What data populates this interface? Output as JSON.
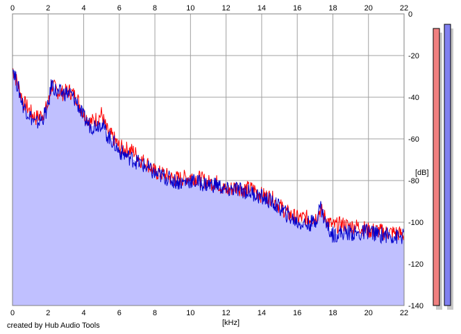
{
  "chart_data": {
    "type": "area",
    "xlabel": "[kHz]",
    "ylabel": "[dB]",
    "xlim": [
      0,
      22
    ],
    "ylim": [
      -140,
      0
    ],
    "x_ticks": [
      "0",
      "2",
      "4",
      "6",
      "8",
      "10",
      "12",
      "14",
      "16",
      "18",
      "20",
      "22"
    ],
    "y_ticks": [
      "0",
      "-20",
      "-40",
      "-60",
      "-80",
      "-100",
      "-120",
      "-140"
    ],
    "grid": true,
    "series": [
      {
        "color": "#ff0000",
        "x": [
          0,
          0.3,
          0.6,
          1,
          1.3,
          1.7,
          2,
          2.2,
          2.5,
          2.8,
          3.2,
          3.6,
          4,
          4.4,
          4.8,
          5,
          5.3,
          5.7,
          6,
          6.4,
          6.8,
          7.2,
          7.6,
          8,
          8.5,
          9,
          9.5,
          10,
          10.5,
          11,
          11.5,
          12,
          12.5,
          13,
          13.5,
          14,
          14.5,
          15,
          15.5,
          16,
          16.5,
          17,
          17.3,
          17.5,
          17.8,
          18,
          18.5,
          19,
          19.5,
          20,
          20.5,
          21,
          21.5,
          22
        ],
        "y": [
          -26,
          -34,
          -42,
          -47,
          -50,
          -48,
          -44,
          -34,
          -37,
          -38,
          -37,
          -40,
          -48,
          -52,
          -50,
          -48,
          -56,
          -60,
          -64,
          -65,
          -66,
          -70,
          -72,
          -76,
          -77,
          -79,
          -79,
          -78,
          -79,
          -81,
          -81,
          -85,
          -83,
          -84,
          -84,
          -87,
          -88,
          -92,
          -96,
          -98,
          -98,
          -98,
          -94,
          -97,
          -100,
          -102,
          -101,
          -102,
          -102,
          -104,
          -104,
          -105,
          -105,
          -106
        ]
      },
      {
        "color": "#0000cc",
        "x": [
          0,
          0.3,
          0.6,
          1,
          1.3,
          1.7,
          2,
          2.2,
          2.5,
          2.8,
          3.2,
          3.6,
          4,
          4.4,
          4.8,
          5,
          5.3,
          5.7,
          6,
          6.4,
          6.8,
          7.2,
          7.6,
          8,
          8.5,
          9,
          9.5,
          10,
          10.5,
          11,
          11.5,
          12,
          12.5,
          13,
          13.5,
          14,
          14.5,
          15,
          15.5,
          16,
          16.5,
          17,
          17.3,
          17.5,
          17.8,
          18,
          18.5,
          19,
          19.5,
          20,
          20.5,
          21,
          21.5,
          22
        ],
        "y": [
          -25,
          -35,
          -44,
          -49,
          -53,
          -50,
          -45,
          -33,
          -38,
          -38,
          -38,
          -42,
          -50,
          -54,
          -53,
          -52,
          -58,
          -62,
          -66,
          -68,
          -70,
          -72,
          -74,
          -77,
          -78,
          -80,
          -81,
          -80,
          -81,
          -82,
          -82,
          -85,
          -84,
          -85,
          -86,
          -88,
          -90,
          -93,
          -97,
          -100,
          -101,
          -100,
          -92,
          -98,
          -104,
          -106,
          -105,
          -105,
          -106,
          -104,
          -106,
          -106,
          -107,
          -107
        ]
      }
    ],
    "level_meters": {
      "ylim": [
        -140,
        0
      ],
      "left_level_db": -7,
      "right_level_db": -5,
      "left_color": "#f08080",
      "right_color": "#8080f0"
    }
  },
  "footer": {
    "credit": "created by Hub Audio Tools"
  }
}
